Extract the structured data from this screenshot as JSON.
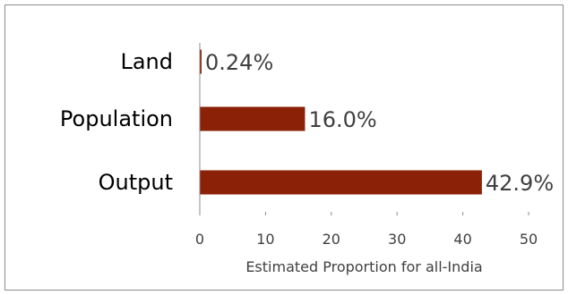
{
  "chart_data": {
    "type": "bar",
    "orientation": "horizontal",
    "categories": [
      "Land",
      "Population",
      "Output"
    ],
    "values": [
      0.24,
      16.0,
      42.9
    ],
    "data_labels": [
      "0.24%",
      "16.0%",
      "42.9%"
    ],
    "xlabel": "Estimated Proportion for all-India",
    "ylabel": "",
    "xlim": [
      0,
      50
    ],
    "xticks": [
      0,
      10,
      20,
      30,
      40,
      50
    ],
    "grid": false,
    "legend": "none",
    "bar_color": "#8b2207"
  }
}
